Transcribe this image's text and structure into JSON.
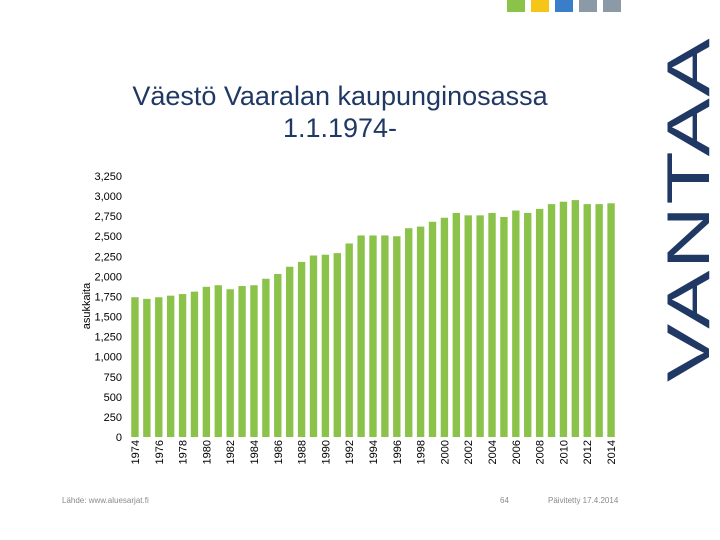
{
  "title": {
    "line1": "Väestö Vaaralan kaupunginosassa",
    "line2": "1.1.1974-"
  },
  "brand": {
    "text": "VANTAA"
  },
  "footer": {
    "source": "Lähde: www.aluesarjat.fi",
    "page": "64",
    "updated": "Päivitetty 17.4.2014"
  },
  "colors": {
    "bar": "#8bc34a",
    "title": "#1f3864",
    "brand": "#1f3864",
    "decor": [
      "#8bc34a",
      "#f5c518",
      "#3a7dc9",
      "#8c9aa8",
      "#8c9aa8"
    ]
  },
  "chart_data": {
    "type": "bar",
    "title": "",
    "xlabel": "",
    "ylabel": "asukkaita",
    "ylim": [
      0,
      3250
    ],
    "yticks": [
      0,
      250,
      500,
      750,
      1000,
      1250,
      1500,
      1750,
      2000,
      2250,
      2500,
      2750,
      3000,
      3250
    ],
    "ytick_labels": [
      "0",
      "250",
      "500",
      "750",
      "1,000",
      "1,250",
      "1,500",
      "1,750",
      "2,000",
      "2,250",
      "2,500",
      "2,750",
      "3,000",
      "3,250"
    ],
    "grid": false,
    "categories": [
      "1974",
      "1975",
      "1976",
      "1977",
      "1978",
      "1979",
      "1980",
      "1981",
      "1982",
      "1983",
      "1984",
      "1985",
      "1986",
      "1987",
      "1988",
      "1989",
      "1990",
      "1991",
      "1992",
      "1993",
      "1994",
      "1995",
      "1996",
      "1997",
      "1998",
      "1999",
      "2000",
      "2001",
      "2002",
      "2003",
      "2004",
      "2005",
      "2006",
      "2007",
      "2008",
      "2009",
      "2010",
      "2011",
      "2012",
      "2013",
      "2014"
    ],
    "xtick_labels": [
      "1974",
      "1976",
      "1978",
      "1980",
      "1982",
      "1984",
      "1986",
      "1988",
      "1990",
      "1992",
      "1994",
      "1996",
      "1998",
      "2000",
      "2002",
      "2004",
      "2006",
      "2008",
      "2010",
      "2012",
      "2014"
    ],
    "values": [
      1740,
      1720,
      1740,
      1760,
      1780,
      1810,
      1870,
      1890,
      1840,
      1880,
      1890,
      1970,
      2030,
      2120,
      2180,
      2260,
      2270,
      2290,
      2410,
      2510,
      2510,
      2510,
      2500,
      2600,
      2620,
      2680,
      2730,
      2790,
      2760,
      2760,
      2790,
      2740,
      2820,
      2790,
      2840,
      2900,
      2930,
      2950,
      2900,
      2900,
      2910
    ]
  }
}
